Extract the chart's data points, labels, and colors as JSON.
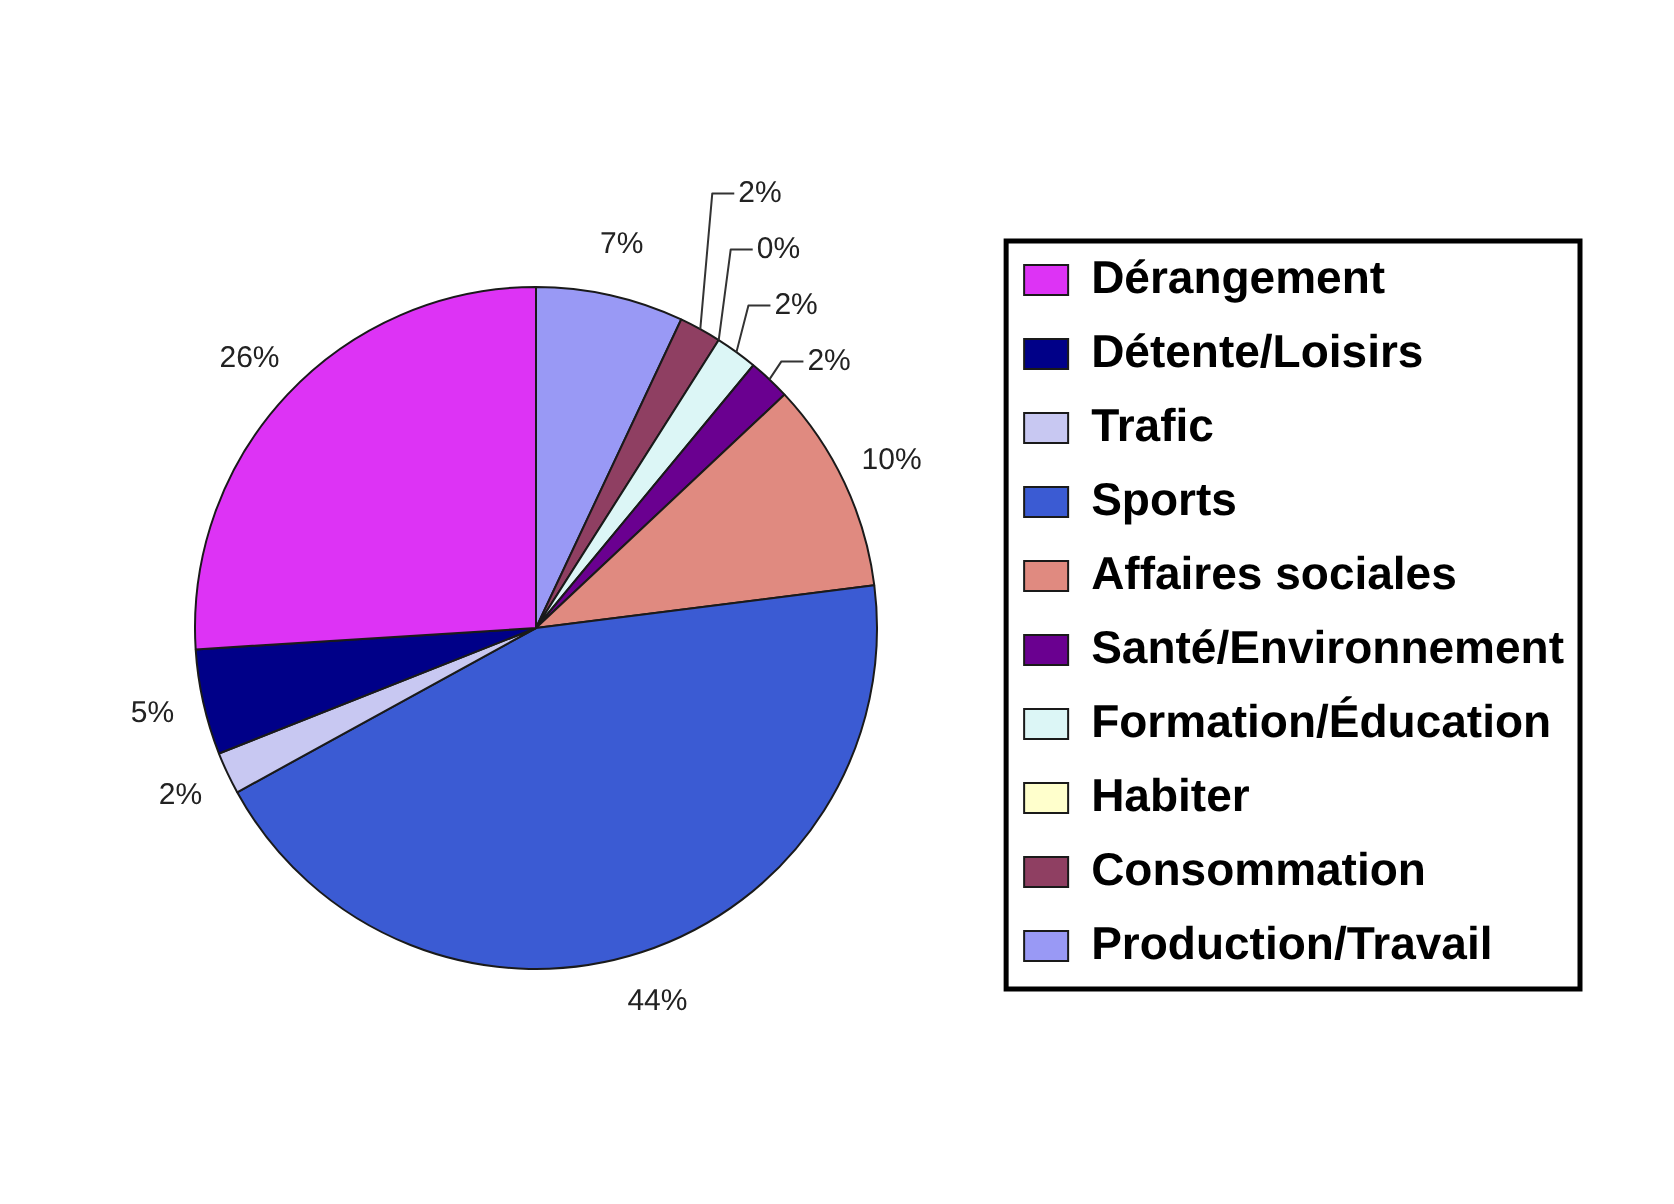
{
  "chart_data": {
    "type": "pie",
    "legend": "right",
    "categories": [
      "Dérangement",
      "Détente/Loisirs",
      "Trafic",
      "Sports",
      "Affaires sociales",
      "Santé/Environnement",
      "Formation/Éducation",
      "Habiter",
      "Consommation",
      "Production/Travail"
    ],
    "values": [
      26,
      5,
      2,
      44,
      10,
      2,
      2,
      0,
      2,
      7
    ],
    "colors": [
      "#dd33f5",
      "#000088",
      "#c8c8f2",
      "#3b5bd3",
      "#e08a80",
      "#6a0090",
      "#dcf6f6",
      "#ffffcc",
      "#8f3f62",
      "#9999f5"
    ],
    "value_labels": [
      "26%",
      "5%",
      "2%",
      "44%",
      "10%",
      "2%",
      "2%",
      "0%",
      "2%",
      "7%"
    ]
  }
}
